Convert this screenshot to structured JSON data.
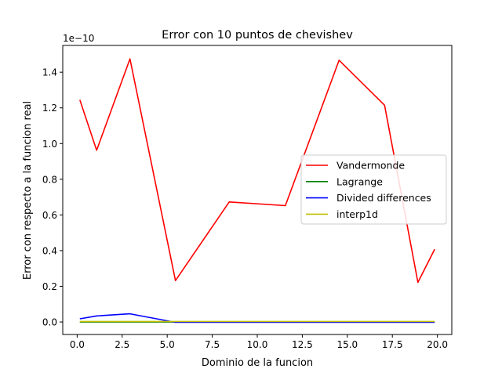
{
  "chart_data": {
    "type": "line",
    "title": "Error con 10 puntos de chevishev",
    "xlabel": "Dominio de la funcion",
    "ylabel": "Error con respecto a la funcion real",
    "y_offset_label": "1e−10",
    "xlim": [
      -0.8,
      20.8
    ],
    "ylim": [
      -0.07,
      1.55
    ],
    "x_ticks": [
      0.0,
      2.5,
      5.0,
      7.5,
      10.0,
      12.5,
      15.0,
      17.5,
      20.0
    ],
    "x_tick_labels": [
      "0.0",
      "2.5",
      "5.0",
      "7.5",
      "10.0",
      "12.5",
      "15.0",
      "17.5",
      "20.0"
    ],
    "y_ticks": [
      0.0,
      0.2,
      0.4,
      0.6,
      0.8,
      1.0,
      1.2,
      1.4
    ],
    "y_tick_labels": [
      "0.0",
      "0.2",
      "0.4",
      "0.6",
      "0.8",
      "1.0",
      "1.2",
      "1.4"
    ],
    "grid": false,
    "legend_position": "center-right",
    "series": [
      {
        "name": "Vandermonde",
        "color": "#ff0000",
        "x": [
          0.15,
          1.08,
          2.93,
          5.46,
          8.44,
          11.56,
          14.54,
          17.07,
          18.92,
          19.85
        ],
        "y": [
          1.245,
          0.962,
          1.475,
          0.232,
          0.673,
          0.652,
          1.467,
          1.215,
          0.222,
          0.408
        ]
      },
      {
        "name": "Lagrange",
        "color": "#008000",
        "x": [
          0.15,
          1.08,
          2.93,
          5.46,
          8.44,
          11.56,
          14.54,
          17.07,
          18.92,
          19.85
        ],
        "y": [
          0.0,
          0.0,
          0.0,
          0.0,
          0.0,
          0.0,
          0.0,
          0.0,
          0.0,
          0.0
        ]
      },
      {
        "name": "Divided differences",
        "color": "#0000ff",
        "x": [
          0.15,
          1.08,
          2.93,
          5.46,
          8.44,
          11.56,
          14.54,
          17.07,
          18.92,
          19.85
        ],
        "y": [
          0.018,
          0.034,
          0.046,
          -0.002,
          -0.002,
          -0.002,
          -0.002,
          -0.002,
          -0.002,
          -0.002
        ]
      },
      {
        "name": "interp1d",
        "color": "#bfbf00",
        "x": [
          0.15,
          1.08,
          2.93,
          5.46,
          8.44,
          11.56,
          14.54,
          17.07,
          18.92,
          19.85
        ],
        "y": [
          0.003,
          0.003,
          0.003,
          0.003,
          0.003,
          0.003,
          0.003,
          0.003,
          0.003,
          0.003
        ]
      }
    ]
  }
}
